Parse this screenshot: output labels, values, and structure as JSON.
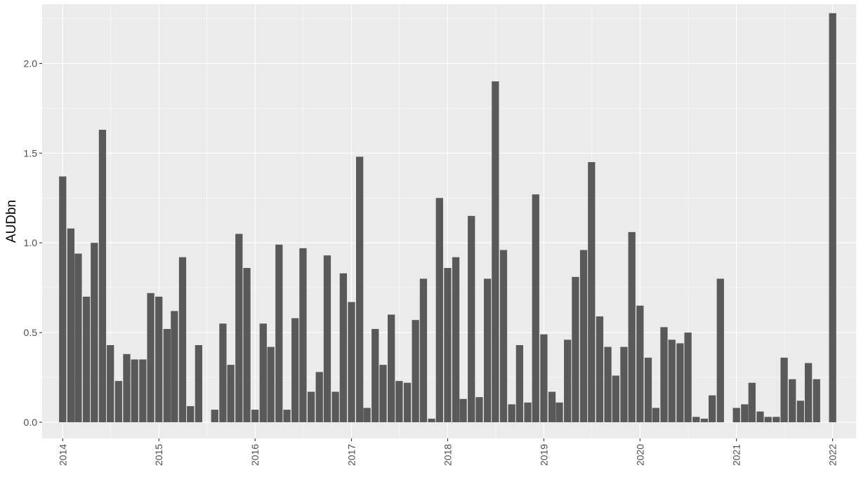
{
  "chart_data": {
    "type": "bar",
    "title": "",
    "xlabel": "",
    "ylabel": "AUDbn",
    "ylim": [
      -0.09,
      2.33
    ],
    "yticks": [
      "0.0",
      "0.5",
      "1.0",
      "1.5",
      "2.0"
    ],
    "xticks": [
      "2014",
      "2015",
      "2016",
      "2017",
      "2018",
      "2019",
      "2020",
      "2021",
      "2022"
    ],
    "xrange": [
      "2013-10-15",
      "2022-03-31"
    ],
    "grid": true,
    "legend": "none",
    "colors": {
      "bar": "#595959",
      "panel": "#ebebeb",
      "grid": "#ffffff"
    },
    "series": [
      {
        "x": [
          "2014-01",
          "2014-02",
          "2014-03",
          "2014-04",
          "2014-05",
          "2014-06",
          "2014-07",
          "2014-08",
          "2014-09",
          "2014-10",
          "2014-11",
          "2014-12",
          "2015-01",
          "2015-02",
          "2015-03",
          "2015-04",
          "2015-05",
          "2015-06",
          "2015-07",
          "2015-08",
          "2015-09",
          "2015-10",
          "2015-11",
          "2015-12",
          "2016-01",
          "2016-02",
          "2016-03",
          "2016-04",
          "2016-05",
          "2016-06",
          "2016-07",
          "2016-08",
          "2016-09",
          "2016-10",
          "2016-11",
          "2016-12",
          "2017-01",
          "2017-02",
          "2017-03",
          "2017-04",
          "2017-05",
          "2017-06",
          "2017-07",
          "2017-08",
          "2017-09",
          "2017-10",
          "2017-11",
          "2017-12",
          "2018-01",
          "2018-02",
          "2018-03",
          "2018-04",
          "2018-05",
          "2018-06",
          "2018-07",
          "2018-08",
          "2018-09",
          "2018-10",
          "2018-11",
          "2018-12",
          "2019-01",
          "2019-02",
          "2019-03",
          "2019-04",
          "2019-05",
          "2019-06",
          "2019-07",
          "2019-08",
          "2019-09",
          "2019-10",
          "2019-11",
          "2019-12",
          "2020-01",
          "2020-02",
          "2020-03",
          "2020-04",
          "2020-05",
          "2020-06",
          "2020-07",
          "2020-08",
          "2020-09",
          "2020-10",
          "2020-11",
          "2020-12",
          "2021-01",
          "2021-02",
          "2021-03",
          "2021-04",
          "2021-05",
          "2021-06",
          "2021-07",
          "2021-08",
          "2021-09",
          "2021-10",
          "2021-11",
          "2021-12",
          "2022-01"
        ],
        "values": [
          1.37,
          1.08,
          0.94,
          0.7,
          1.0,
          1.63,
          0.43,
          0.23,
          0.38,
          0.35,
          0.35,
          0.72,
          0.7,
          0.52,
          0.62,
          0.92,
          0.09,
          0.43,
          0.0,
          0.07,
          0.55,
          0.32,
          1.05,
          0.86,
          0.07,
          0.55,
          0.42,
          0.99,
          0.07,
          0.58,
          0.97,
          0.17,
          0.28,
          0.93,
          0.17,
          0.83,
          0.67,
          1.48,
          0.08,
          0.52,
          0.32,
          0.6,
          0.23,
          0.22,
          0.57,
          0.8,
          0.02,
          1.25,
          0.86,
          0.92,
          0.13,
          1.15,
          0.14,
          0.8,
          1.9,
          0.96,
          0.1,
          0.43,
          0.11,
          1.27,
          0.49,
          0.17,
          0.11,
          0.46,
          0.81,
          0.96,
          1.45,
          0.59,
          0.42,
          0.26,
          0.42,
          1.06,
          0.65,
          0.36,
          0.08,
          0.53,
          0.46,
          0.44,
          0.5,
          0.03,
          0.02,
          0.15,
          0.8,
          0.0,
          0.08,
          0.1,
          0.22,
          0.06,
          0.03,
          0.03,
          0.36,
          0.24,
          0.12,
          0.33,
          0.24,
          0.0,
          2.28
        ]
      }
    ]
  }
}
